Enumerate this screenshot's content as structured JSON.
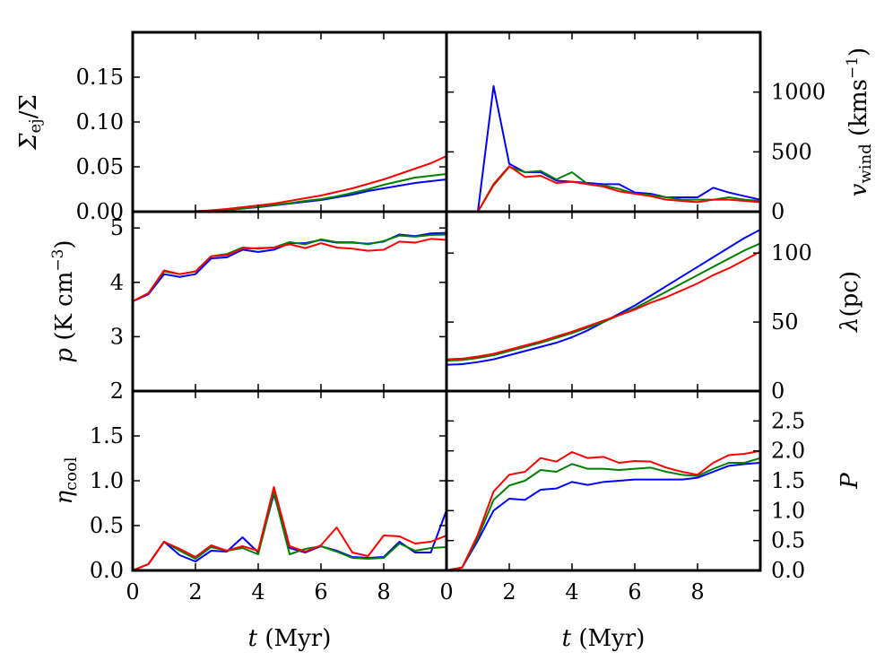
{
  "chart_data": [
    {
      "id": "sigma",
      "type": "line",
      "ylabel": "Σ_ej/Σ",
      "ylabel_main": "Σ",
      "ylabel_sub": "ej",
      "ylabel_tail": "/Σ",
      "yside": "left",
      "xlim": [
        0,
        10
      ],
      "ylim": [
        0,
        0.2
      ],
      "yticks": [
        0,
        0.05,
        0.1,
        0.15
      ],
      "ytick_labels": [
        "0.00",
        "0.05",
        "0.10",
        "0.15"
      ],
      "series": [
        {
          "name": "blue",
          "color": "#0000ff",
          "x": [
            0,
            0.5,
            1,
            1.5,
            2,
            2.5,
            3,
            3.5,
            4,
            4.5,
            5,
            5.5,
            6,
            6.5,
            7,
            7.5,
            8,
            8.5,
            9,
            9.5,
            10
          ],
          "y": [
            0,
            0,
            0,
            0,
            0.0005,
            0.001,
            0.002,
            0.0035,
            0.005,
            0.007,
            0.009,
            0.011,
            0.013,
            0.016,
            0.019,
            0.023,
            0.026,
            0.029,
            0.032,
            0.034,
            0.036
          ]
        },
        {
          "name": "green",
          "color": "#008000",
          "x": [
            0,
            0.5,
            1,
            1.5,
            2,
            2.5,
            3,
            3.5,
            4,
            4.5,
            5,
            5.5,
            6,
            6.5,
            7,
            7.5,
            8,
            8.5,
            9,
            9.5,
            10
          ],
          "y": [
            0,
            0,
            0,
            0,
            0.0005,
            0.001,
            0.002,
            0.0035,
            0.0055,
            0.0075,
            0.0095,
            0.012,
            0.014,
            0.017,
            0.021,
            0.025,
            0.03,
            0.034,
            0.038,
            0.04,
            0.042
          ]
        },
        {
          "name": "red",
          "color": "#ff0000",
          "x": [
            0,
            0.5,
            1,
            1.5,
            2,
            2.5,
            3,
            3.5,
            4,
            4.5,
            5,
            5.5,
            6,
            6.5,
            7,
            7.5,
            8,
            8.5,
            9,
            9.5,
            10
          ],
          "y": [
            0,
            0,
            0,
            0,
            0.0005,
            0.0015,
            0.003,
            0.005,
            0.007,
            0.009,
            0.012,
            0.015,
            0.018,
            0.022,
            0.026,
            0.031,
            0.036,
            0.042,
            0.048,
            0.054,
            0.062
          ]
        }
      ]
    },
    {
      "id": "vwind",
      "type": "line",
      "ylabel": "v_wind (kms^-1)",
      "ylabel_main": "v",
      "ylabel_sub": "wind",
      "ylabel_tail": " (kms",
      "ylabel_sup": "−1",
      "ylabel_close": ")",
      "yside": "right",
      "xlim": [
        0,
        10
      ],
      "ylim": [
        0,
        1500
      ],
      "yticks": [
        0,
        500,
        1000
      ],
      "ytick_labels": [
        "0",
        "500",
        "1000"
      ],
      "series": [
        {
          "name": "blue",
          "color": "#0000ff",
          "x": [
            1,
            1.5,
            2,
            2.5,
            3,
            3.5,
            4,
            4.5,
            5,
            5.5,
            6,
            6.5,
            7,
            7.5,
            8,
            8.5,
            9,
            9.5,
            10
          ],
          "y": [
            0,
            1050,
            400,
            330,
            330,
            260,
            250,
            240,
            230,
            230,
            160,
            150,
            120,
            120,
            120,
            200,
            160,
            130,
            100
          ]
        },
        {
          "name": "green",
          "color": "#008000",
          "x": [
            1,
            1.5,
            2,
            2.5,
            3,
            3.5,
            4,
            4.5,
            5,
            5.5,
            6,
            6.5,
            7,
            7.5,
            8,
            8.5,
            9,
            9.5,
            10
          ],
          "y": [
            0,
            220,
            375,
            330,
            340,
            270,
            330,
            230,
            220,
            190,
            150,
            140,
            120,
            100,
            100,
            100,
            120,
            100,
            90
          ]
        },
        {
          "name": "red",
          "color": "#ff0000",
          "x": [
            1,
            1.5,
            2,
            2.5,
            3,
            3.5,
            4,
            4.5,
            5,
            5.5,
            6,
            6.5,
            7,
            7.5,
            8,
            8.5,
            9,
            9.5,
            10
          ],
          "y": [
            0,
            230,
            380,
            290,
            300,
            240,
            250,
            230,
            210,
            170,
            150,
            130,
            100,
            90,
            80,
            100,
            100,
            90,
            80
          ]
        }
      ]
    },
    {
      "id": "pressure",
      "type": "line",
      "ylabel": "p (K cm^-3)",
      "ylabel_main": "p",
      "ylabel_tail": " (K cm",
      "ylabel_sup": "−3",
      "ylabel_close": ")",
      "yside": "left",
      "xlim": [
        0,
        10
      ],
      "ylim": [
        2,
        5.3
      ],
      "yticks": [
        2,
        3,
        4,
        5
      ],
      "ytick_labels": [
        "2",
        "3",
        "4",
        "5"
      ],
      "series": [
        {
          "name": "blue",
          "color": "#0000ff",
          "x": [
            0,
            0.5,
            1,
            1.5,
            2,
            2.5,
            3,
            3.5,
            4,
            4.5,
            5,
            5.5,
            6,
            6.5,
            7,
            7.5,
            8,
            8.5,
            9,
            9.5,
            10
          ],
          "y": [
            3.65,
            3.78,
            4.15,
            4.1,
            4.15,
            4.44,
            4.46,
            4.6,
            4.56,
            4.6,
            4.72,
            4.72,
            4.78,
            4.73,
            4.73,
            4.71,
            4.75,
            4.88,
            4.85,
            4.9,
            4.91
          ]
        },
        {
          "name": "green",
          "color": "#008000",
          "x": [
            0,
            0.5,
            1,
            1.5,
            2,
            2.5,
            3,
            3.5,
            4,
            4.5,
            5,
            5.5,
            6,
            6.5,
            7,
            7.5,
            8,
            8.5,
            9,
            9.5,
            10
          ],
          "y": [
            3.65,
            3.8,
            4.2,
            4.15,
            4.2,
            4.48,
            4.52,
            4.64,
            4.62,
            4.64,
            4.74,
            4.7,
            4.79,
            4.74,
            4.74,
            4.7,
            4.76,
            4.86,
            4.84,
            4.87,
            4.88
          ]
        },
        {
          "name": "red",
          "color": "#ff0000",
          "x": [
            0,
            0.5,
            1,
            1.5,
            2,
            2.5,
            3,
            3.5,
            4,
            4.5,
            5,
            5.5,
            6,
            6.5,
            7,
            7.5,
            8,
            8.5,
            9,
            9.5,
            10
          ],
          "y": [
            3.65,
            3.8,
            4.22,
            4.15,
            4.2,
            4.48,
            4.5,
            4.62,
            4.63,
            4.64,
            4.7,
            4.63,
            4.72,
            4.64,
            4.62,
            4.58,
            4.6,
            4.75,
            4.73,
            4.8,
            4.78
          ]
        }
      ]
    },
    {
      "id": "lambda",
      "type": "line",
      "ylabel": "λ(pc)",
      "ylabel_main": "λ",
      "ylabel_tail": "(pc)",
      "yside": "right",
      "xlim": [
        0,
        10
      ],
      "ylim": [
        0,
        130
      ],
      "yticks": [
        0,
        50,
        100
      ],
      "ytick_labels": [
        "0",
        "50",
        "100"
      ],
      "series": [
        {
          "name": "blue",
          "color": "#0000ff",
          "x": [
            0,
            0.5,
            1,
            1.5,
            2,
            2.5,
            3,
            3.5,
            4,
            4.5,
            5,
            5.5,
            6,
            6.5,
            7,
            7.5,
            8,
            8.5,
            9,
            9.5,
            10
          ],
          "y": [
            19,
            19.5,
            21,
            23,
            26,
            29,
            32,
            35,
            39,
            44,
            50,
            56,
            62,
            69,
            76,
            83,
            90,
            97,
            104,
            111,
            117
          ]
        },
        {
          "name": "green",
          "color": "#008000",
          "x": [
            0,
            0.5,
            1,
            1.5,
            2,
            2.5,
            3,
            3.5,
            4,
            4.5,
            5,
            5.5,
            6,
            6.5,
            7,
            7.5,
            8,
            8.5,
            9,
            9.5,
            10
          ],
          "y": [
            22,
            22.5,
            24,
            26,
            29,
            32,
            35,
            38.5,
            42,
            46,
            50,
            55,
            60,
            66,
            72,
            78,
            84,
            90,
            96,
            102,
            107
          ]
        },
        {
          "name": "red",
          "color": "#ff0000",
          "x": [
            0,
            0.5,
            1,
            1.5,
            2,
            2.5,
            3,
            3.5,
            4,
            4.5,
            5,
            5.5,
            6,
            6.5,
            7,
            7.5,
            8,
            8.5,
            9,
            9.5,
            10
          ],
          "y": [
            23,
            23.5,
            25,
            27,
            30,
            33,
            36,
            39.5,
            43,
            47,
            51,
            55,
            59,
            64,
            68,
            73,
            78,
            84,
            89,
            95,
            101
          ]
        }
      ]
    },
    {
      "id": "etacool",
      "type": "line",
      "ylabel": "η_cool",
      "ylabel_main": "η",
      "ylabel_sub": "cool",
      "yside": "left",
      "xlabel_prefix": "t",
      "xlabel_suffix": " (Myr)",
      "xlim": [
        0,
        10
      ],
      "ylim": [
        0,
        2
      ],
      "yticks": [
        0,
        0.5,
        1,
        1.5
      ],
      "ytick_labels": [
        "0.0",
        "0.5",
        "1.0",
        "1.5"
      ],
      "xticks": [
        0,
        2,
        4,
        6,
        8
      ],
      "xtick_labels": [
        "0",
        "2",
        "4",
        "6",
        "8"
      ],
      "series": [
        {
          "name": "blue",
          "color": "#0000ff",
          "x": [
            0,
            0.5,
            1,
            1.5,
            2,
            2.5,
            3,
            3.5,
            4,
            4.5,
            5,
            5.5,
            6,
            6.5,
            7,
            7.5,
            8,
            8.5,
            9,
            9.5,
            10
          ],
          "y": [
            0,
            0.07,
            0.32,
            0.17,
            0.1,
            0.22,
            0.21,
            0.37,
            0.2,
            0.85,
            0.25,
            0.2,
            0.27,
            0.22,
            0.15,
            0.14,
            0.15,
            0.32,
            0.2,
            0.2,
            0.67
          ]
        },
        {
          "name": "green",
          "color": "#008000",
          "x": [
            0,
            0.5,
            1,
            1.5,
            2,
            2.5,
            3,
            3.5,
            4,
            4.5,
            5,
            5.5,
            6,
            6.5,
            7,
            7.5,
            8,
            8.5,
            9,
            9.5,
            10
          ],
          "y": [
            0,
            0.07,
            0.32,
            0.22,
            0.13,
            0.26,
            0.22,
            0.25,
            0.18,
            0.87,
            0.18,
            0.24,
            0.27,
            0.21,
            0.14,
            0.13,
            0.14,
            0.3,
            0.22,
            0.25,
            0.26
          ]
        },
        {
          "name": "red",
          "color": "#ff0000",
          "x": [
            0,
            0.5,
            1,
            1.5,
            2,
            2.5,
            3,
            3.5,
            4,
            4.5,
            5,
            5.5,
            6,
            6.5,
            7,
            7.5,
            8,
            8.5,
            9,
            9.5,
            10
          ],
          "y": [
            0,
            0.07,
            0.32,
            0.24,
            0.15,
            0.28,
            0.22,
            0.27,
            0.22,
            0.93,
            0.27,
            0.21,
            0.28,
            0.48,
            0.2,
            0.16,
            0.39,
            0.38,
            0.3,
            0.32,
            0.39
          ]
        }
      ]
    },
    {
      "id": "P",
      "type": "line",
      "ylabel": "P",
      "ylabel_main": "P",
      "yside": "right",
      "xlabel_prefix": "t",
      "xlabel_suffix": " (Myr)",
      "xlim": [
        0,
        10
      ],
      "ylim": [
        0,
        3
      ],
      "yticks": [
        0,
        0.5,
        1,
        1.5,
        2,
        2.5
      ],
      "ytick_labels": [
        "0.0",
        "0.5",
        "1.0",
        "1.5",
        "2.0",
        "2.5"
      ],
      "xticks": [
        0,
        2,
        4,
        6,
        8
      ],
      "xtick_labels": [
        "0",
        "2",
        "4",
        "6",
        "8"
      ],
      "series": [
        {
          "name": "blue",
          "color": "#0000ff",
          "x": [
            0,
            0.5,
            1,
            1.5,
            2,
            2.5,
            3,
            3.5,
            4,
            4.5,
            5,
            5.5,
            6,
            6.5,
            7,
            7.5,
            8,
            8.5,
            9,
            9.5,
            10
          ],
          "y": [
            0,
            0.05,
            0.5,
            1,
            1.2,
            1.18,
            1.35,
            1.37,
            1.48,
            1.43,
            1.48,
            1.5,
            1.52,
            1.52,
            1.52,
            1.52,
            1.55,
            1.65,
            1.75,
            1.78,
            1.8
          ]
        },
        {
          "name": "green",
          "color": "#008000",
          "x": [
            0,
            0.5,
            1,
            1.5,
            2,
            2.5,
            3,
            3.5,
            4,
            4.5,
            5,
            5.5,
            6,
            6.5,
            7,
            7.5,
            8,
            8.5,
            9,
            9.5,
            10
          ],
          "y": [
            0,
            0.05,
            0.55,
            1.18,
            1.42,
            1.5,
            1.68,
            1.65,
            1.78,
            1.7,
            1.7,
            1.68,
            1.7,
            1.72,
            1.65,
            1.6,
            1.58,
            1.7,
            1.8,
            1.8,
            1.88
          ]
        },
        {
          "name": "red",
          "color": "#ff0000",
          "x": [
            0,
            0.5,
            1,
            1.5,
            2,
            2.5,
            3,
            3.5,
            4,
            4.5,
            5,
            5.5,
            6,
            6.5,
            7,
            7.5,
            8,
            8.5,
            9,
            9.5,
            10
          ],
          "y": [
            0,
            0.05,
            0.6,
            1.32,
            1.6,
            1.65,
            1.88,
            1.82,
            1.98,
            1.88,
            1.9,
            1.8,
            1.83,
            1.82,
            1.72,
            1.65,
            1.6,
            1.8,
            1.93,
            1.95,
            2
          ]
        }
      ]
    }
  ]
}
